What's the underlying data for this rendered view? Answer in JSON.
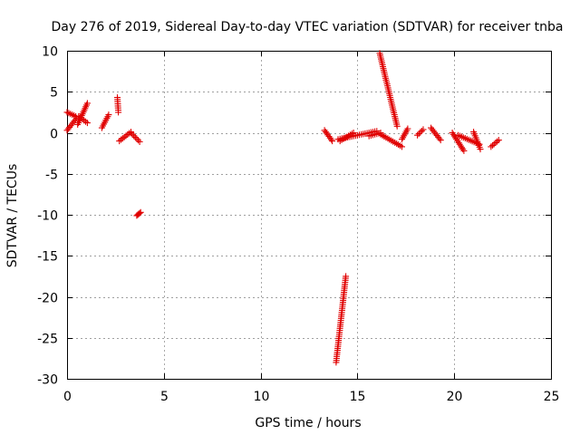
{
  "chart_data": {
    "type": "scatter",
    "title": "Day 276 of 2019, Sidereal Day-to-day VTEC variation (SDTVAR) for receiver tnba",
    "xlabel": "GPS time / hours",
    "ylabel": "SDTVAR / TECUs",
    "xlim": [
      0,
      25
    ],
    "ylim": [
      -30,
      10
    ],
    "xticks": [
      0,
      5,
      10,
      15,
      20,
      25
    ],
    "yticks": [
      10,
      5,
      0,
      -5,
      -10,
      -15,
      -20,
      -25,
      -30
    ],
    "grid": true,
    "marker": "plus",
    "marker_color": "#e00000",
    "segments": [
      {
        "name": "arc-00",
        "x": [
          0.0,
          0.5
        ],
        "y": [
          0.3,
          1.8
        ]
      },
      {
        "name": "arc-01",
        "x": [
          0.0,
          0.45
        ],
        "y": [
          2.5,
          2.0
        ]
      },
      {
        "name": "arc-02",
        "x": [
          0.55,
          1.05
        ],
        "y": [
          1.0,
          3.6
        ]
      },
      {
        "name": "arc-03",
        "x": [
          0.6,
          1.05
        ],
        "y": [
          2.0,
          1.2
        ]
      },
      {
        "name": "arc-04",
        "x": [
          1.8,
          2.15
        ],
        "y": [
          0.6,
          2.2
        ]
      },
      {
        "name": "arc-05",
        "x": [
          2.6,
          2.65
        ],
        "y": [
          4.3,
          2.5
        ]
      },
      {
        "name": "arc-06",
        "x": [
          2.7,
          3.3
        ],
        "y": [
          -1.0,
          0.1
        ]
      },
      {
        "name": "arc-07",
        "x": [
          3.3,
          3.75
        ],
        "y": [
          0.0,
          -1.1
        ]
      },
      {
        "name": "arc-08",
        "x": [
          3.6,
          3.8
        ],
        "y": [
          -10.1,
          -9.7
        ]
      },
      {
        "name": "arc-09",
        "x": [
          13.3,
          13.7
        ],
        "y": [
          0.3,
          -1.0
        ]
      },
      {
        "name": "arc-10",
        "x": [
          13.9,
          14.4
        ],
        "y": [
          -28.0,
          -17.5
        ]
      },
      {
        "name": "arc-11",
        "x": [
          14.0,
          16.0
        ],
        "y": [
          -0.8,
          0.2
        ]
      },
      {
        "name": "arc-12",
        "x": [
          14.1,
          14.8
        ],
        "y": [
          -1.0,
          0.0
        ]
      },
      {
        "name": "arc-13",
        "x": [
          15.6,
          16.2
        ],
        "y": [
          -0.4,
          0.0
        ]
      },
      {
        "name": "arc-14",
        "x": [
          16.15,
          17.05
        ],
        "y": [
          9.7,
          0.8
        ]
      },
      {
        "name": "arc-15",
        "x": [
          16.2,
          17.3
        ],
        "y": [
          -0.2,
          -1.7
        ]
      },
      {
        "name": "arc-16",
        "x": [
          17.3,
          17.6
        ],
        "y": [
          -0.8,
          0.5
        ]
      },
      {
        "name": "arc-17",
        "x": [
          18.1,
          18.4
        ],
        "y": [
          -0.3,
          0.4
        ]
      },
      {
        "name": "arc-18",
        "x": [
          18.8,
          19.3
        ],
        "y": [
          0.6,
          -0.9
        ]
      },
      {
        "name": "arc-19",
        "x": [
          19.9,
          20.5
        ],
        "y": [
          0.0,
          -2.2
        ]
      },
      {
        "name": "arc-20",
        "x": [
          20.2,
          21.3
        ],
        "y": [
          -0.3,
          -1.4
        ]
      },
      {
        "name": "arc-21",
        "x": [
          21.0,
          21.35
        ],
        "y": [
          0.1,
          -2.0
        ]
      },
      {
        "name": "arc-22",
        "x": [
          21.9,
          22.3
        ],
        "y": [
          -1.7,
          -0.9
        ]
      }
    ]
  }
}
